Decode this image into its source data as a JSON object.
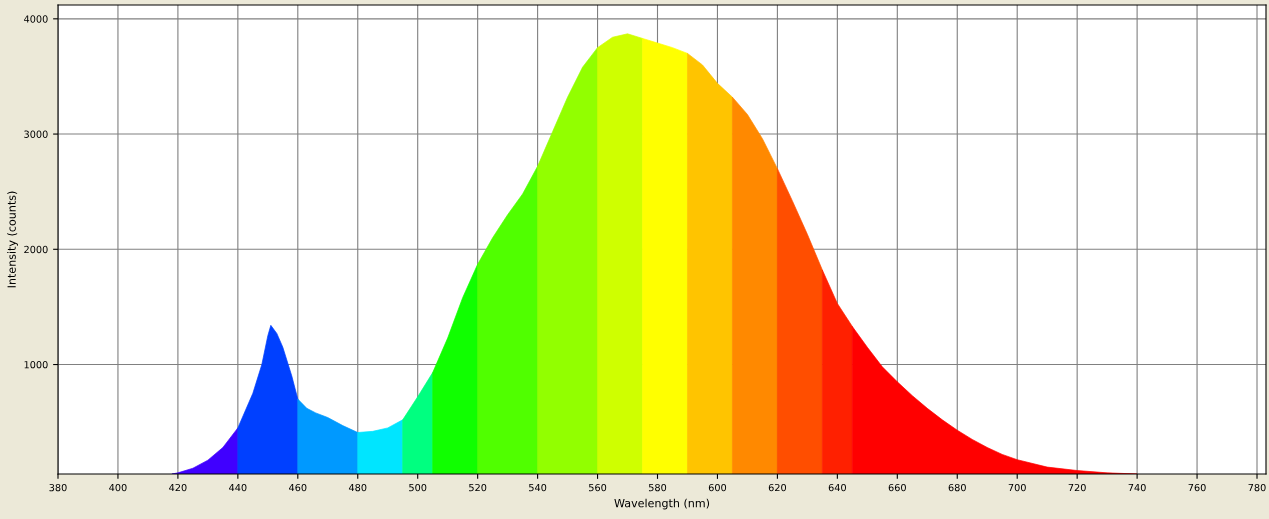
{
  "chart_data": {
    "type": "area",
    "xlabel": "Wavelength (nm)",
    "ylabel": "Intensity (counts)",
    "xlim": [
      380,
      783
    ],
    "ylim": [
      50,
      4120
    ],
    "xticks": [
      380,
      400,
      420,
      440,
      460,
      480,
      500,
      520,
      540,
      560,
      580,
      600,
      620,
      640,
      660,
      680,
      700,
      720,
      740,
      760,
      780
    ],
    "yticks": [
      1000,
      2000,
      3000,
      4000
    ],
    "grid": true,
    "series": [
      {
        "color": "#4000ff",
        "x": [
          418,
          420,
          425,
          430,
          435,
          440
        ],
        "values": [
          50,
          60,
          100,
          170,
          280,
          450
        ]
      },
      {
        "color": "#0040ff",
        "x": [
          440,
          445,
          448,
          450,
          451,
          453,
          455,
          458,
          460
        ],
        "values": [
          450,
          750,
          1000,
          1250,
          1340,
          1270,
          1150,
          900,
          700
        ]
      },
      {
        "color": "#0099ff",
        "x": [
          460,
          463,
          466,
          470,
          475,
          480
        ],
        "values": [
          700,
          620,
          580,
          540,
          470,
          410
        ]
      },
      {
        "color": "#00e5ff",
        "x": [
          480,
          485,
          490,
          495
        ],
        "values": [
          410,
          420,
          450,
          520
        ]
      },
      {
        "color": "#00ff80",
        "x": [
          495,
          500,
          505
        ],
        "values": [
          520,
          720,
          930
        ]
      },
      {
        "color": "#10ff00",
        "x": [
          505,
          510,
          515,
          520
        ],
        "values": [
          930,
          1230,
          1580,
          1870
        ]
      },
      {
        "color": "#50ff00",
        "x": [
          520,
          525,
          530,
          535,
          540
        ],
        "values": [
          1870,
          2100,
          2300,
          2480,
          2720
        ]
      },
      {
        "color": "#92ff00",
        "x": [
          540,
          545,
          550,
          555,
          560
        ],
        "values": [
          2720,
          3020,
          3320,
          3580,
          3750
        ]
      },
      {
        "color": "#cfff00",
        "x": [
          560,
          565,
          570,
          575
        ],
        "values": [
          3750,
          3840,
          3870,
          3830
        ]
      },
      {
        "color": "#ffff00",
        "x": [
          575,
          580,
          585,
          590
        ],
        "values": [
          3830,
          3790,
          3750,
          3700
        ]
      },
      {
        "color": "#ffc400",
        "x": [
          590,
          595,
          600,
          605
        ],
        "values": [
          3700,
          3600,
          3440,
          3320
        ]
      },
      {
        "color": "#ff8900",
        "x": [
          605,
          610,
          615,
          620
        ],
        "values": [
          3320,
          3170,
          2960,
          2700
        ]
      },
      {
        "color": "#ff4e00",
        "x": [
          620,
          625,
          630,
          635
        ],
        "values": [
          2700,
          2420,
          2130,
          1820
        ]
      },
      {
        "color": "#ff2000",
        "x": [
          635,
          640,
          645
        ],
        "values": [
          1820,
          1530,
          1330
        ]
      },
      {
        "color": "#ff0000",
        "x": [
          645,
          650,
          655,
          660,
          665,
          670,
          675,
          680,
          685,
          690,
          695,
          700,
          710,
          720,
          730,
          740
        ],
        "values": [
          1330,
          1150,
          980,
          850,
          730,
          620,
          520,
          430,
          350,
          280,
          220,
          174,
          110,
          80,
          60,
          50
        ]
      }
    ]
  }
}
